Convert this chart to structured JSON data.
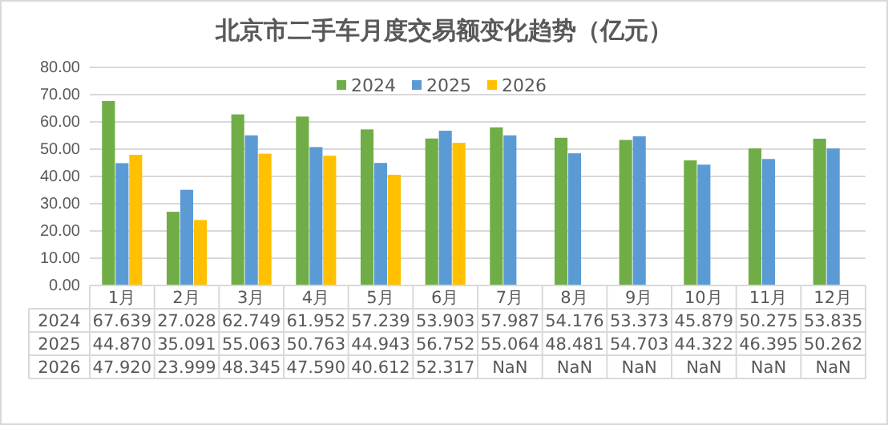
{
  "chart_data": {
    "type": "bar",
    "title": "北京市二手车月度交易额变化趋势（亿元）",
    "categories": [
      "1月",
      "2月",
      "3月",
      "4月",
      "5月",
      "6月",
      "7月",
      "8月",
      "9月",
      "10月",
      "11月",
      "12月"
    ],
    "series": [
      {
        "name": "2024",
        "color": "#70ad47",
        "values": [
          67.639,
          27.028,
          62.749,
          61.952,
          57.239,
          53.903,
          57.987,
          54.176,
          53.373,
          45.879,
          50.275,
          53.835
        ],
        "value_labels": [
          "67.639",
          "27.028",
          "62.749",
          "61.952",
          "57.239",
          "53.903",
          "57.987",
          "54.176",
          "53.373",
          "45.879",
          "50.275",
          "53.835"
        ]
      },
      {
        "name": "2025",
        "color": "#5b9bd5",
        "values": [
          44.87,
          35.091,
          55.063,
          50.763,
          44.943,
          56.752,
          55.064,
          48.481,
          54.703,
          44.322,
          46.395,
          50.262
        ],
        "value_labels": [
          "44.870",
          "35.091",
          "55.063",
          "50.763",
          "44.943",
          "56.752",
          "55.064",
          "48.481",
          "54.703",
          "44.322",
          "46.395",
          "50.262"
        ]
      },
      {
        "name": "2026",
        "color": "#ffc000",
        "values": [
          47.92,
          23.999,
          48.345,
          47.59,
          40.612,
          52.317,
          null,
          null,
          null,
          null,
          null,
          null
        ],
        "value_labels": [
          "47.920",
          "23.999",
          "48.345",
          "47.590",
          "40.612",
          "52.317",
          "NaN",
          "NaN",
          "NaN",
          "NaN",
          "NaN",
          "NaN"
        ]
      }
    ],
    "ylim": [
      0,
      80
    ],
    "yticks": [
      {
        "value": 0,
        "label": "0.00"
      },
      {
        "value": 10,
        "label": "10.00"
      },
      {
        "value": 20,
        "label": "20.00"
      },
      {
        "value": 30,
        "label": "30.00"
      },
      {
        "value": 40,
        "label": "40.00"
      },
      {
        "value": 50,
        "label": "50.00"
      },
      {
        "value": 60,
        "label": "60.00"
      },
      {
        "value": 70,
        "label": "70.00"
      },
      {
        "value": 80,
        "label": "80.00"
      }
    ],
    "grid": "y",
    "legend": "top"
  }
}
